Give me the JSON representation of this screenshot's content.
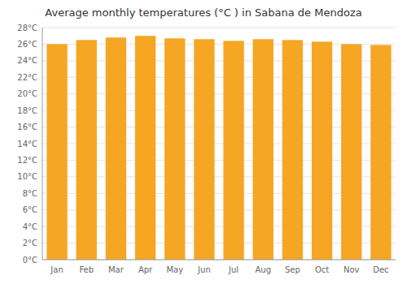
{
  "chart_data": {
    "type": "bar",
    "title": "Average monthly temperatures (°C ) in Sabana de Mendoza",
    "categories": [
      "Jan",
      "Feb",
      "Mar",
      "Apr",
      "May",
      "Jun",
      "Jul",
      "Aug",
      "Sep",
      "Oct",
      "Nov",
      "Dec"
    ],
    "values": [
      26.0,
      26.5,
      26.8,
      27.0,
      26.7,
      26.6,
      26.4,
      26.6,
      26.5,
      26.3,
      26.0,
      25.9
    ],
    "color": "#F5A623",
    "ylim": [
      0,
      28
    ],
    "yticks": [
      {
        "value": 0,
        "label": "0°C"
      },
      {
        "value": 2,
        "label": "2°C"
      },
      {
        "value": 4,
        "label": "4°C"
      },
      {
        "value": 6,
        "label": "6°C"
      },
      {
        "value": 8,
        "label": "8°C"
      },
      {
        "value": 10,
        "label": "10°C"
      },
      {
        "value": 12,
        "label": "12°C"
      },
      {
        "value": 14,
        "label": "14°C"
      },
      {
        "value": 16,
        "label": "16°C"
      },
      {
        "value": 18,
        "label": "18°C"
      },
      {
        "value": 20,
        "label": "20°C"
      },
      {
        "value": 22,
        "label": "22°C"
      },
      {
        "value": 24,
        "label": "24°C"
      },
      {
        "value": 26,
        "label": "26°C"
      },
      {
        "value": 28,
        "label": "28°C"
      }
    ],
    "grid": true
  }
}
